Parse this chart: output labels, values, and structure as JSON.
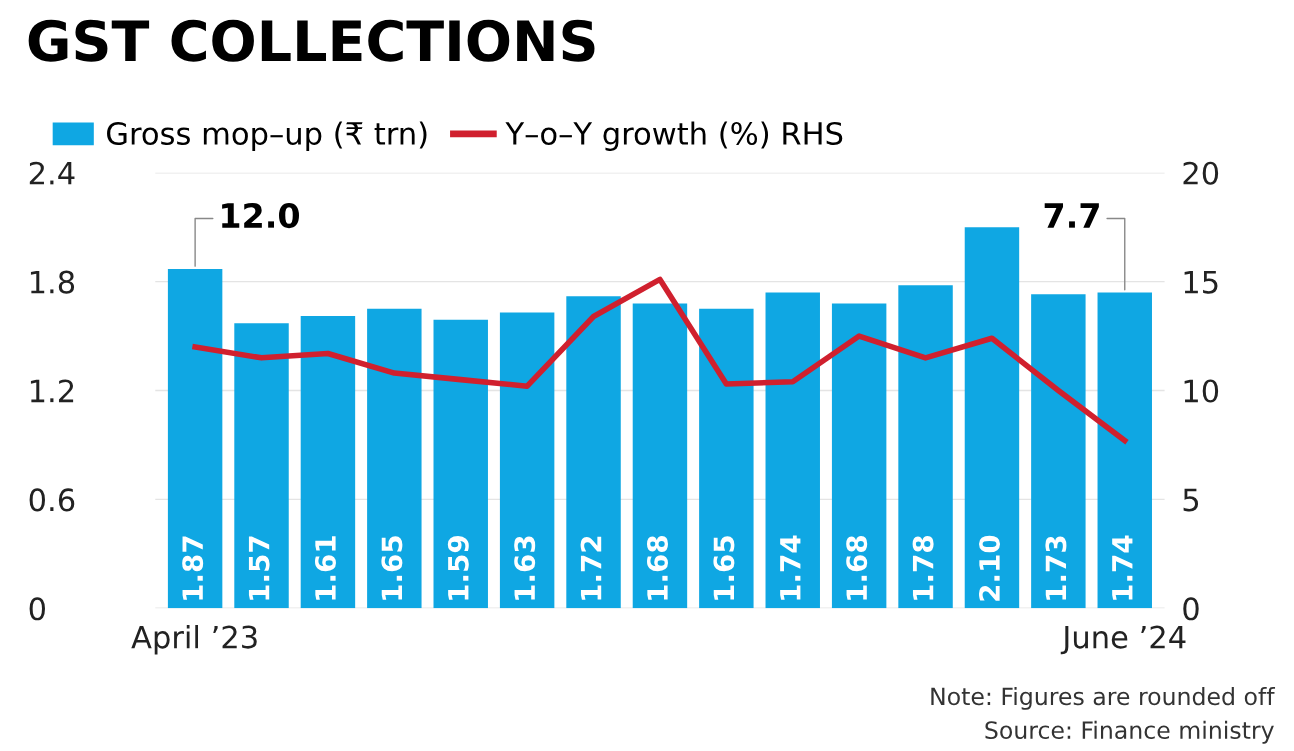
{
  "chart_data": {
    "type": "bar",
    "title": "GST COLLECTIONS",
    "categories": [
      "April ’23",
      null,
      null,
      null,
      null,
      null,
      null,
      null,
      null,
      null,
      null,
      null,
      null,
      null,
      "June ’24"
    ],
    "series": [
      {
        "name": "Gross mop–up (₹ trn)",
        "color": "#0fa7e3",
        "values": [
          1.87,
          1.57,
          1.61,
          1.65,
          1.59,
          1.63,
          1.72,
          1.68,
          1.65,
          1.74,
          1.68,
          1.78,
          2.1,
          1.73,
          1.74
        ],
        "value_labels": [
          "1.87",
          "1.57",
          "1.61",
          "1.65",
          "1.59",
          "1.63",
          "1.72",
          "1.68",
          "1.65",
          "1.74",
          "1.68",
          "1.78",
          "2.10",
          "1.73",
          "1.74"
        ]
      },
      {
        "name": "Y–o–Y growth (%) RHS",
        "color": "#d0202e",
        "type": "line",
        "axis": "y2",
        "values": [
          12.0,
          11.5,
          11.7,
          10.8,
          10.5,
          10.2,
          13.4,
          15.1,
          10.3,
          10.4,
          12.5,
          11.5,
          12.4,
          10.0,
          7.7
        ]
      }
    ],
    "ylim": [
      0,
      2.4
    ],
    "yticks": [
      0,
      0.6,
      1.2,
      1.8,
      2.4
    ],
    "y2lim": [
      0,
      20
    ],
    "y2ticks": [
      0,
      5,
      10,
      15,
      20
    ],
    "grid": "y",
    "legend": "top left",
    "annotations": [
      {
        "text": "12.0",
        "x": "April ’23",
        "y": 1.87
      },
      {
        "text": "7.7",
        "x": "June ’24",
        "y": 1.74
      },
      "Note: Figures are rounded off",
      "Source: Finance ministry"
    ]
  }
}
